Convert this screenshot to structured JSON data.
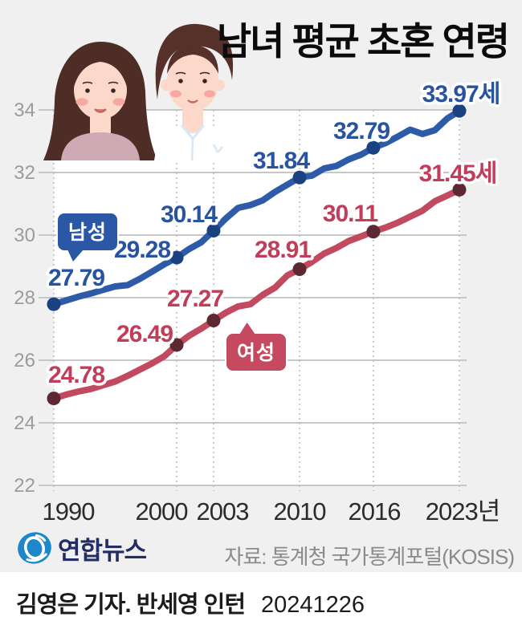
{
  "title": "남녀 평균 초혼 연령",
  "legend": {
    "men_label": "남성",
    "women_label": "여성"
  },
  "chart_data": {
    "type": "line",
    "title": "남녀 평균 초혼 연령",
    "unit_suffix": "세",
    "x": [
      1990,
      2000,
      2003,
      2010,
      2016,
      2023
    ],
    "x_axis_labels": [
      "1990",
      "2000",
      "2003",
      "2010",
      "2016",
      "2023년"
    ],
    "y_ticks": [
      22,
      24,
      26,
      28,
      30,
      32,
      34
    ],
    "ylim": [
      22,
      34.5
    ],
    "grid": "horizontal-solid, vertical-dotted-at-labeled-years",
    "legend_position": "on-chart speech bubbles",
    "series": [
      {
        "name": "남성",
        "line_color": "#2e5ba8",
        "dot_color": "#1a4182",
        "label_color": "#2853a0",
        "values": [
          27.79,
          29.28,
          30.14,
          31.84,
          32.79,
          33.97
        ],
        "point_labels": [
          "27.79",
          "29.28",
          "30.14",
          "31.84",
          "32.79",
          "33.97세"
        ],
        "yearly_estimate_start": 1990,
        "yearly_estimate": [
          27.79,
          27.91,
          28.03,
          28.13,
          28.25,
          28.36,
          28.4,
          28.6,
          28.83,
          29.07,
          29.28,
          29.55,
          29.77,
          30.14,
          30.53,
          30.87,
          30.96,
          31.11,
          31.38,
          31.61,
          31.84,
          31.9,
          32.13,
          32.21,
          32.42,
          32.57,
          32.79,
          32.94,
          33.15,
          33.37,
          33.23,
          33.35,
          33.72,
          33.97
        ]
      },
      {
        "name": "여성",
        "line_color": "#c14a60",
        "dot_color": "#5c2832",
        "label_color": "#c03e5a",
        "values": [
          24.78,
          26.49,
          27.27,
          28.91,
          30.11,
          31.45
        ],
        "point_labels": [
          "24.78",
          "26.49",
          "27.27",
          "28.91",
          "30.11",
          "31.45세"
        ],
        "yearly_estimate_start": 1990,
        "yearly_estimate": [
          24.78,
          24.9,
          25.0,
          25.08,
          25.2,
          25.32,
          25.5,
          25.7,
          25.9,
          26.13,
          26.49,
          26.78,
          27.01,
          27.27,
          27.52,
          27.72,
          27.79,
          28.09,
          28.32,
          28.71,
          28.91,
          29.14,
          29.41,
          29.59,
          29.81,
          29.96,
          30.11,
          30.24,
          30.4,
          30.59,
          30.78,
          31.08,
          31.26,
          31.45
        ]
      }
    ]
  },
  "footer": {
    "brand": "연합뉴스",
    "logo_icon": "yonhap-globe-logo",
    "source": "자료: 통계청 국가통계포털(KOSIS)"
  },
  "byline": {
    "credit": "김영은 기자. 반세영 인턴",
    "date": "20241226"
  },
  "colors": {
    "card_background": "#f0f0f1",
    "plot_background": "#ffffff",
    "solid_grid": "#c7c7c9",
    "dotted_grid": "#bfbfbf",
    "y_tick_text": "#9b9b9d",
    "x_tick_text": "#2c2c2e",
    "men_badge": "#2b57a7",
    "women_badge": "#c64a5f",
    "logo_blue": "#1c87c9",
    "brand_navy": "#222d63"
  }
}
